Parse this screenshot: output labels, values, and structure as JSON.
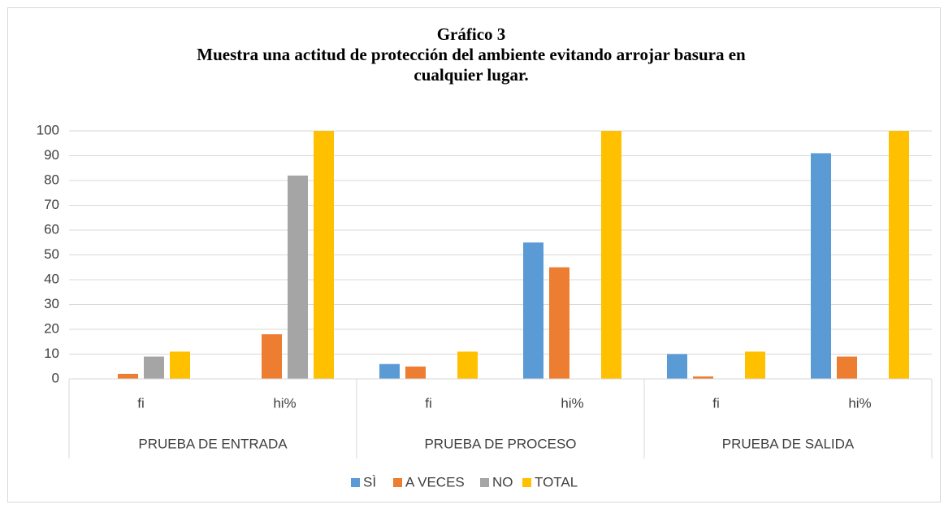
{
  "chart_data": {
    "type": "bar",
    "title": "Gráfico 3",
    "subtitle": "Muestra una actitud de protección del ambiente evitando arrojar basura en cualquier lugar.",
    "categories": [
      "fi",
      "hi%",
      "fi",
      "hi%",
      "fi",
      "hi%"
    ],
    "groups": [
      "PRUEBA DE ENTRADA",
      "PRUEBA DE PROCESO",
      "PRUEBA DE SALIDA"
    ],
    "series": [
      {
        "name": "SÌ",
        "color": "#5b9bd5",
        "values": [
          0,
          0,
          6,
          55,
          10,
          91
        ]
      },
      {
        "name": "A VECES",
        "color": "#ed7d31",
        "values": [
          2,
          18,
          5,
          45,
          1,
          9
        ]
      },
      {
        "name": "NO",
        "color": "#a5a5a5",
        "values": [
          9,
          82,
          0,
          0,
          0,
          0
        ]
      },
      {
        "name": "TOTAL",
        "color": "#ffc000",
        "values": [
          11,
          100,
          11,
          100,
          11,
          100
        ]
      }
    ],
    "ylim": [
      0,
      100
    ],
    "yticks": [
      0,
      10,
      20,
      30,
      40,
      50,
      60,
      70,
      80,
      90,
      100
    ],
    "grid": true,
    "legend": "bottom"
  }
}
